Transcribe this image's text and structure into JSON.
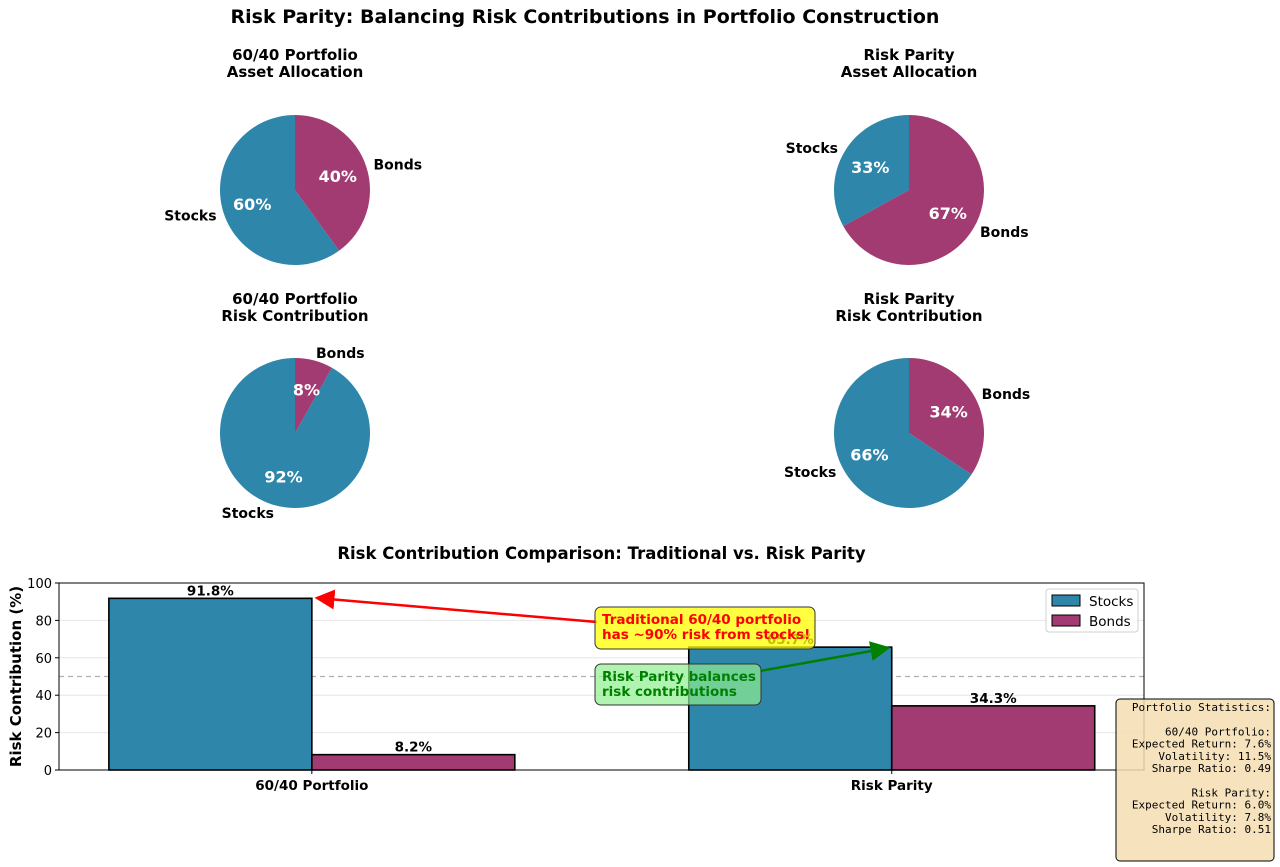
{
  "title": "Risk Parity: Balancing Risk Contributions in Portfolio Construction",
  "colors": {
    "stocks": "#2E86AB",
    "bonds": "#A23B72"
  },
  "chart_data": [
    {
      "type": "pie",
      "title": "60/40 Portfolio\nAsset Allocation",
      "title_lines": [
        "60/40 Portfolio",
        "Asset Allocation"
      ],
      "labels": [
        "Stocks",
        "Bonds"
      ],
      "values": [
        60,
        40
      ],
      "pct_labels": [
        "60%",
        "40%"
      ]
    },
    {
      "type": "pie",
      "title": "Risk Parity\nAsset Allocation",
      "title_lines": [
        "Risk Parity",
        "Asset Allocation"
      ],
      "labels": [
        "Stocks",
        "Bonds"
      ],
      "values": [
        33,
        67
      ],
      "pct_labels": [
        "33%",
        "67%"
      ]
    },
    {
      "type": "pie",
      "title": "60/40 Portfolio\nRisk Contribution",
      "title_lines": [
        "60/40 Portfolio",
        "Risk Contribution"
      ],
      "labels": [
        "Stocks",
        "Bonds"
      ],
      "values": [
        91.8,
        8.2
      ],
      "pct_labels": [
        "92%",
        "8%"
      ]
    },
    {
      "type": "pie",
      "title": "Risk Parity\nRisk Contribution",
      "title_lines": [
        "Risk Parity",
        "Risk Contribution"
      ],
      "labels": [
        "Stocks",
        "Bonds"
      ],
      "values": [
        65.7,
        34.3
      ],
      "pct_labels": [
        "66%",
        "34%"
      ]
    },
    {
      "type": "bar",
      "title": "Risk Contribution Comparison: Traditional vs. Risk Parity",
      "xlabel": "",
      "ylabel": "Risk Contribution (%)",
      "categories": [
        "60/40 Portfolio",
        "Risk Parity"
      ],
      "series": [
        {
          "name": "Stocks",
          "values": [
            91.8,
            65.7
          ],
          "labels": [
            "91.8%",
            "65.7%"
          ]
        },
        {
          "name": "Bonds",
          "values": [
            8.2,
            34.3
          ],
          "labels": [
            "8.2%",
            "34.3%"
          ]
        }
      ],
      "ylim": [
        0,
        100
      ],
      "yticks": [
        0,
        20,
        40,
        60,
        80,
        100
      ],
      "grid": "y",
      "reference_line": 50,
      "legend": {
        "placement": "top-right",
        "entries": [
          "Stocks",
          "Bonds"
        ]
      },
      "annotations": [
        {
          "lines": [
            "Traditional 60/40 portfolio",
            "has ~90% risk from stocks!"
          ],
          "points_to": {
            "category": "60/40 Portfolio",
            "series": "Stocks"
          },
          "color": "#ff0000",
          "box": "#ffff00"
        },
        {
          "lines": [
            "Risk Parity balances",
            "risk contributions"
          ],
          "points_to": {
            "category": "Risk Parity",
            "series": "Stocks"
          },
          "color": "#008000",
          "box": "#90ee90"
        }
      ]
    }
  ],
  "stats_box": {
    "lines": [
      "Portfolio Statistics:",
      "",
      "60/40 Portfolio:",
      "Expected Return: 7.6%",
      "Volatility: 11.5%",
      "Sharpe Ratio: 0.49",
      "",
      "Risk Parity:",
      "Expected Return: 6.0%",
      "Volatility: 7.8%",
      "Sharpe Ratio: 0.51"
    ]
  }
}
